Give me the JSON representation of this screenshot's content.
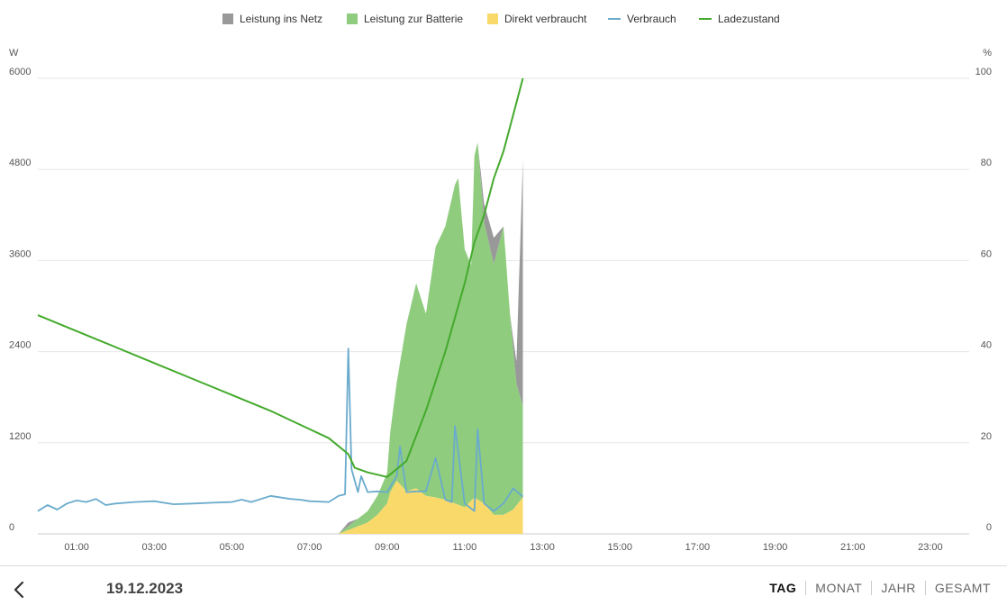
{
  "legend": {
    "grid_to_net": {
      "label": "Leistung ins Netz",
      "color": "#999999"
    },
    "to_battery": {
      "label": "Leistung zur Batterie",
      "color": "#8fcc7e"
    },
    "direct_use": {
      "label": "Direkt verbraucht",
      "color": "#f9d96a"
    },
    "consumption": {
      "label": "Verbrauch",
      "color": "#6aabcc"
    },
    "soc": {
      "label": "Ladezustand",
      "color": "#44aa2c"
    }
  },
  "footer": {
    "back_icon": "chevron-left-icon",
    "date": "19.12.2023",
    "tabs": [
      {
        "label": "TAG",
        "active": true
      },
      {
        "label": "MONAT",
        "active": false
      },
      {
        "label": "JAHR",
        "active": false
      },
      {
        "label": "GESAMT",
        "active": false
      }
    ]
  },
  "chart_data": {
    "type": "area",
    "title": "",
    "ylabel_left": "W",
    "ylabel_right": "%",
    "y_left_range": [
      0,
      6000
    ],
    "y_right_range": [
      0,
      100
    ],
    "y_left_ticks": [
      "0",
      "1200",
      "2400",
      "3600",
      "4800",
      "6000"
    ],
    "y_right_ticks": [
      "0",
      "20",
      "40",
      "60",
      "80",
      "100"
    ],
    "x_range_hours": [
      0,
      24
    ],
    "x_ticks": [
      "01:00",
      "03:00",
      "05:00",
      "07:00",
      "09:00",
      "11:00",
      "13:00",
      "15:00",
      "17:00",
      "19:00",
      "21:00",
      "23:00"
    ],
    "grid": true,
    "legend_position": "top-center",
    "series": [
      {
        "name": "Leistung ins Netz",
        "kind": "area-stacked-top",
        "x": [
          "07:45",
          "08:00",
          "08:15",
          "08:30",
          "08:45",
          "09:00",
          "09:15",
          "09:30",
          "09:45",
          "10:00",
          "10:15",
          "10:30",
          "10:45",
          "11:00",
          "11:10",
          "11:20",
          "11:30",
          "11:45",
          "12:00",
          "12:10",
          "12:20",
          "12:30"
        ],
        "values": [
          0,
          50,
          0,
          0,
          0,
          0,
          0,
          0,
          0,
          0,
          0,
          0,
          0,
          0,
          0,
          0,
          250,
          350,
          0,
          0,
          300,
          3250
        ]
      },
      {
        "name": "Leistung zur Batterie",
        "kind": "area-stacked",
        "x": [
          "07:45",
          "08:00",
          "08:15",
          "08:30",
          "08:45",
          "09:00",
          "09:05",
          "09:15",
          "09:30",
          "09:45",
          "10:00",
          "10:15",
          "10:30",
          "10:45",
          "10:50",
          "11:00",
          "11:10",
          "11:15",
          "11:20",
          "11:30",
          "11:45",
          "12:00",
          "12:10",
          "12:20",
          "12:30"
        ],
        "values": [
          0,
          50,
          100,
          150,
          250,
          400,
          800,
          1300,
          2200,
          2700,
          2400,
          3300,
          3600,
          4200,
          4300,
          3400,
          3100,
          4500,
          4700,
          3700,
          3300,
          3800,
          2600,
          1600,
          1200
        ]
      },
      {
        "name": "Direkt verbraucht",
        "kind": "area",
        "x": [
          "07:45",
          "08:00",
          "08:15",
          "08:30",
          "08:45",
          "09:00",
          "09:05",
          "09:15",
          "09:30",
          "09:45",
          "10:00",
          "10:15",
          "10:30",
          "10:45",
          "11:00",
          "11:15",
          "11:30",
          "11:45",
          "12:00",
          "12:15",
          "12:30"
        ],
        "values": [
          0,
          50,
          100,
          150,
          250,
          400,
          550,
          700,
          560,
          600,
          500,
          480,
          450,
          400,
          350,
          480,
          400,
          250,
          250,
          320,
          480
        ]
      },
      {
        "name": "Verbrauch",
        "kind": "line",
        "x": [
          "00:00",
          "00:15",
          "00:30",
          "00:45",
          "01:00",
          "01:15",
          "01:30",
          "01:45",
          "02:00",
          "02:30",
          "03:00",
          "03:30",
          "04:00",
          "04:30",
          "05:00",
          "05:15",
          "05:30",
          "06:00",
          "06:30",
          "06:45",
          "07:00",
          "07:30",
          "07:45",
          "07:55",
          "08:00",
          "08:05",
          "08:15",
          "08:20",
          "08:30",
          "08:45",
          "09:00",
          "09:15",
          "09:20",
          "09:30",
          "09:45",
          "10:00",
          "10:15",
          "10:30",
          "10:40",
          "10:45",
          "11:00",
          "11:15",
          "11:20",
          "11:30",
          "11:45",
          "12:00",
          "12:15",
          "12:30"
        ],
        "values": [
          300,
          380,
          320,
          400,
          440,
          420,
          460,
          380,
          400,
          420,
          430,
          390,
          400,
          410,
          420,
          450,
          420,
          500,
          460,
          450,
          430,
          420,
          500,
          520,
          2440,
          850,
          550,
          760,
          550,
          560,
          550,
          760,
          1150,
          550,
          560,
          560,
          1000,
          450,
          420,
          1420,
          400,
          300,
          1380,
          400,
          300,
          400,
          600,
          490
        ]
      },
      {
        "name": "Ladezustand",
        "kind": "line",
        "axis": "right",
        "x": [
          "00:00",
          "01:00",
          "02:00",
          "03:00",
          "04:00",
          "05:00",
          "06:00",
          "07:00",
          "07:30",
          "08:00",
          "08:10",
          "08:30",
          "09:00",
          "09:30",
          "10:00",
          "10:30",
          "11:00",
          "11:15",
          "11:30",
          "11:45",
          "12:00",
          "12:15",
          "12:30"
        ],
        "values": [
          48,
          44.5,
          41,
          37.5,
          34,
          30.5,
          27,
          23,
          21,
          17.5,
          14.5,
          13.5,
          12.5,
          16,
          27,
          40,
          55,
          64,
          70,
          78,
          84,
          92,
          100
        ]
      }
    ]
  }
}
